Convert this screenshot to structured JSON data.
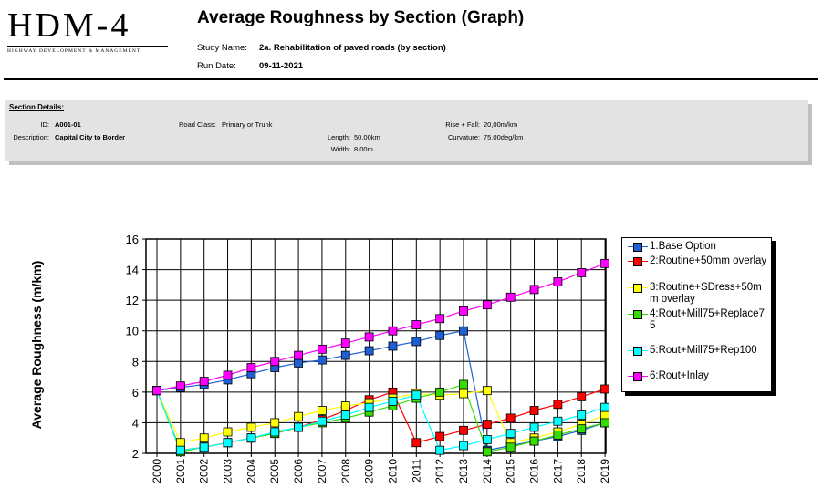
{
  "header": {
    "logo_main": "HDM-4",
    "logo_sub": "HIGHWAY DEVELOPMENT & MANAGEMENT",
    "title": "Average Roughness by Section (Graph)",
    "study_name_label": "Study Name:",
    "study_name_value": "2a. Rehabilitation of paved roads (by section)",
    "run_date_label": "Run Date:",
    "run_date_value": "09-11-2021"
  },
  "section": {
    "title": "Section Details:",
    "id_label": "ID:",
    "id_value": "A001-01",
    "description_label": "Description:",
    "description_value": "Capital City to Border",
    "road_class_label": "Road Class:",
    "road_class_value": "Primary or Trunk",
    "length_label": "Length:",
    "length_value": "50,00km",
    "width_label": "Width:",
    "width_value": "8,00m",
    "rise_fall_label": "Rise + Fall:",
    "rise_fall_value": "20,00m/km",
    "curvature_label": "Curvature:",
    "curvature_value": "75,00deg/km"
  },
  "chart_data": {
    "type": "line",
    "title": "Average Roughness by Section (Graph)",
    "xlabel": "",
    "ylabel": "Average Roughness (m/km)",
    "ylim": [
      2,
      16
    ],
    "yticks": [
      2,
      4,
      6,
      8,
      10,
      12,
      14,
      16
    ],
    "grid": true,
    "legend_position": "right",
    "x": [
      "2000",
      "2001",
      "2002",
      "2003",
      "2004",
      "2005",
      "2006",
      "2007",
      "2008",
      "2009",
      "2010",
      "2011",
      "2012",
      "2013",
      "2014",
      "2015",
      "2016",
      "2017",
      "2018",
      "2019"
    ],
    "series": [
      {
        "name": "1.Base Option",
        "color": "#1f5fd6",
        "values": [
          6.1,
          6.3,
          6.5,
          6.8,
          7.2,
          7.6,
          7.9,
          8.1,
          8.4,
          8.7,
          9.0,
          9.3,
          9.7,
          10.0,
          2.2,
          2.5,
          2.8,
          3.1,
          3.5,
          4.0
        ]
      },
      {
        "name": "2:Routine+50mm overlay",
        "color": "#ff0000",
        "values": [
          6.1,
          2.2,
          2.4,
          2.7,
          3.0,
          3.3,
          3.7,
          4.2,
          4.8,
          5.5,
          6.0,
          2.7,
          3.1,
          3.5,
          3.9,
          4.3,
          4.8,
          5.2,
          5.7,
          6.2
        ]
      },
      {
        "name": "3:Routine+SDress+50mm overlay",
        "color": "#ffff00",
        "values": [
          6.1,
          2.7,
          3.0,
          3.4,
          3.7,
          4.0,
          4.4,
          4.8,
          5.1,
          5.3,
          5.6,
          5.9,
          5.8,
          5.9,
          6.1,
          2.7,
          3.0,
          3.4,
          3.9,
          4.5
        ]
      },
      {
        "name": "4:Rout+Mill75+Replace75",
        "color": "#33dd00",
        "values": [
          6.1,
          2.1,
          2.4,
          2.7,
          3.0,
          3.3,
          3.7,
          4.0,
          4.3,
          4.7,
          5.1,
          5.6,
          6.0,
          6.5,
          2.1,
          2.4,
          2.8,
          3.2,
          3.6,
          4.0
        ]
      },
      {
        "name": "5:Rout+Mill75+Rep100",
        "color": "#00ffff",
        "values": [
          6.1,
          2.2,
          2.4,
          2.7,
          3.0,
          3.4,
          3.7,
          4.1,
          4.5,
          5.0,
          5.4,
          5.8,
          2.2,
          2.5,
          2.9,
          3.3,
          3.7,
          4.1,
          4.5,
          5.0
        ]
      },
      {
        "name": "6:Rout+Inlay",
        "color": "#ff00ff",
        "values": [
          6.1,
          6.4,
          6.7,
          7.1,
          7.6,
          8.0,
          8.4,
          8.8,
          9.2,
          9.6,
          10.0,
          10.4,
          10.8,
          11.3,
          11.7,
          12.2,
          12.7,
          13.2,
          13.8,
          14.4
        ]
      }
    ]
  }
}
